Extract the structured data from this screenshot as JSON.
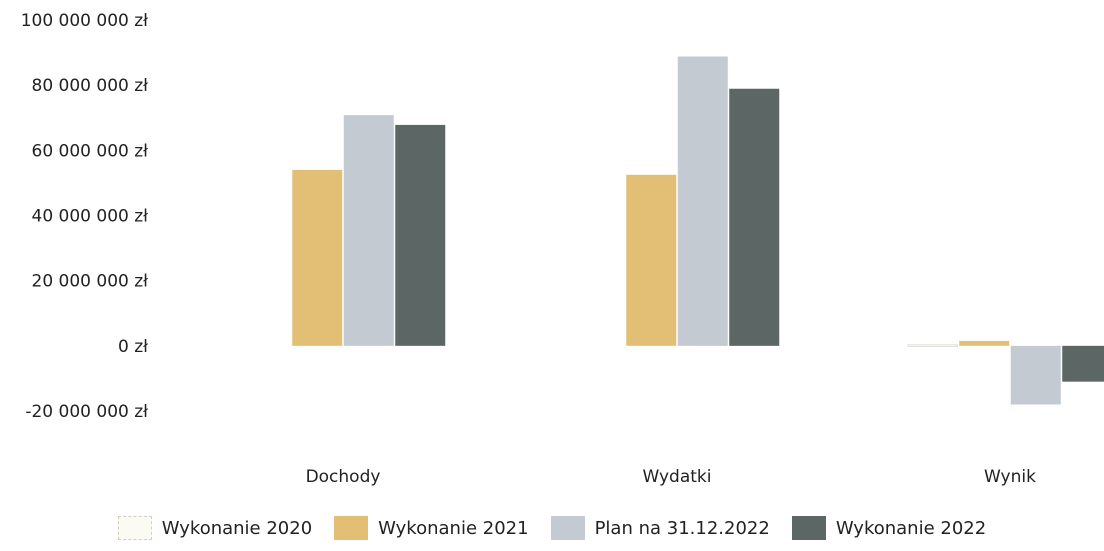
{
  "chart_data": {
    "type": "bar",
    "categories": [
      "Dochody",
      "Wydatki",
      "Wynik"
    ],
    "series": [
      {
        "name": "Wykonanie 2020",
        "values": [
          0,
          0,
          300000
        ],
        "color": "#fbfaf3",
        "stroke": "#cfcfc4"
      },
      {
        "name": "Wykonanie 2021",
        "values": [
          54000000,
          52500000,
          1500000
        ],
        "color": "#e3bf76"
      },
      {
        "name": "Plan na 31.12.2022",
        "values": [
          70800000,
          88800000,
          -18000000
        ],
        "color": "#c3cad1"
      },
      {
        "name": "Wykonanie 2022",
        "values": [
          67800000,
          78900000,
          -11000000
        ],
        "color": "#5c6664"
      }
    ],
    "yticks": [
      "100 000 000 zł",
      "80 000 000 zł",
      "60 000 000 zł",
      "40 000 000 zł",
      "20 000 000 zł",
      "0 zł",
      "-20 000 000 zł"
    ],
    "ylim": [
      -20000000,
      100000000
    ],
    "grid": false,
    "legend_position": "bottom"
  }
}
